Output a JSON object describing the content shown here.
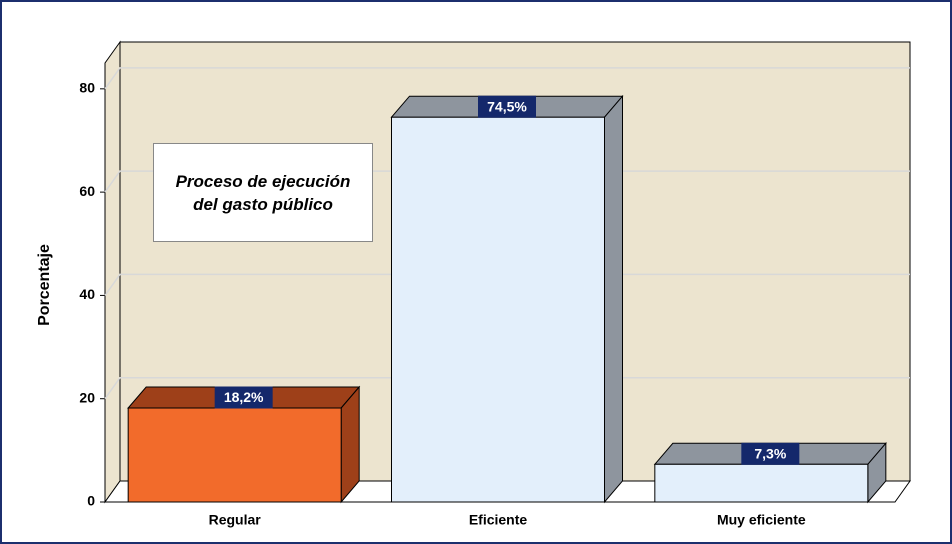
{
  "chart_data": {
    "type": "bar3d",
    "y_label": "Porcentaje",
    "annotation": "Proceso de ejecución del gasto público",
    "categories": [
      "Regular",
      "Eficiente",
      "Muy eficiente"
    ],
    "values": [
      18.2,
      74.5,
      7.3
    ],
    "value_labels": [
      "18,2%",
      "74,5%",
      "7,3%"
    ],
    "colors": [
      "#f26b2b",
      "#e3effb",
      "#e3effb"
    ],
    "side_colors": [
      "#9e4019",
      "#8e959e",
      "#8e959e"
    ],
    "wall_color": "#ece4cf",
    "ylim": [
      0,
      85
    ],
    "yticks": [
      0,
      20,
      40,
      60,
      80
    ],
    "grid": true
  }
}
